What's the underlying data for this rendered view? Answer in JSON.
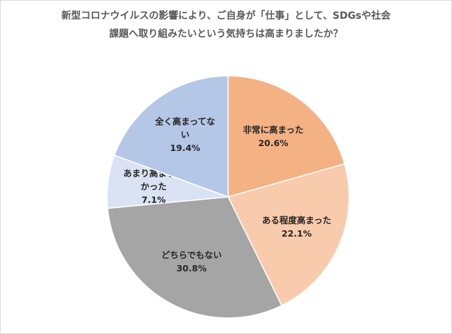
{
  "chart_data": {
    "type": "pie",
    "title_lines": [
      "新型コロナウイルスの影響により、ご自身が「仕事」として、SDGsや社会",
      "課題へ取り組みたいという気持ちは高まりましたか？"
    ],
    "slices": [
      {
        "label_lines": [
          "非常に高まった"
        ],
        "value": 20.6,
        "value_label": "20.6%",
        "color": "#f4b183"
      },
      {
        "label_lines": [
          "ある程度高まった"
        ],
        "value": 22.1,
        "value_label": "22.1%",
        "color": "#f8cbad"
      },
      {
        "label_lines": [
          "どちらでもない"
        ],
        "value": 30.8,
        "value_label": "30.8%",
        "color": "#a5a5a5"
      },
      {
        "label_lines": [
          "あまり高まらな",
          "かった"
        ],
        "value": 7.1,
        "value_label": "7.1%",
        "color": "#dae3f3"
      },
      {
        "label_lines": [
          "全く高まってな",
          "い"
        ],
        "value": 19.4,
        "value_label": "19.4%",
        "color": "#b4c7e7"
      }
    ]
  }
}
